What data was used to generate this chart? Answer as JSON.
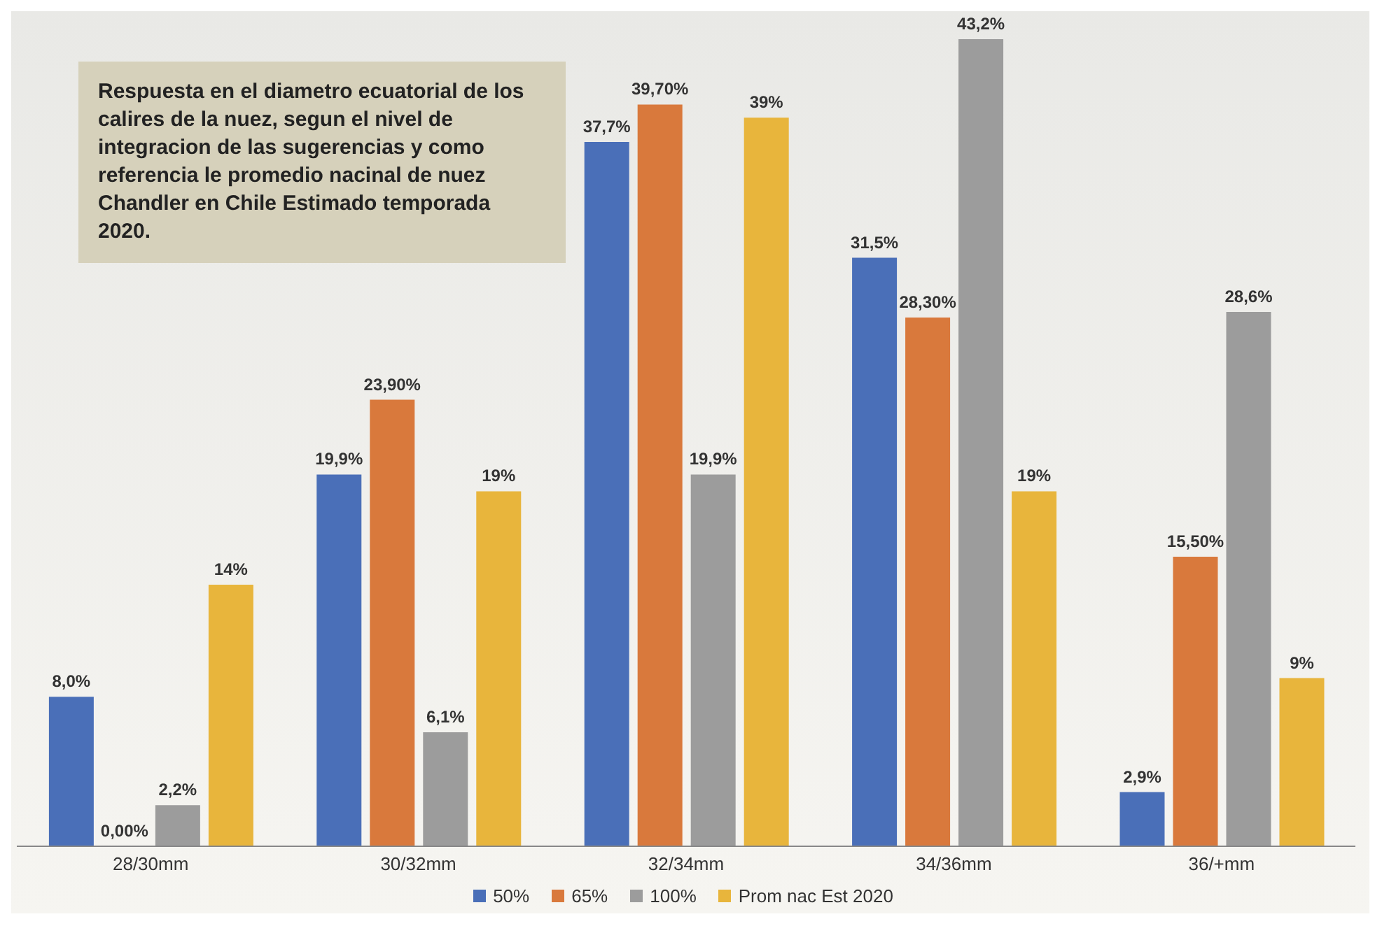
{
  "chart_data": {
    "type": "bar",
    "categories": [
      "28/30mm",
      "30/32mm",
      "32/34mm",
      "34/36mm",
      "36/+mm"
    ],
    "series": [
      {
        "name": "50%",
        "color": "#4a6fb8",
        "values": [
          8.0,
          19.9,
          37.7,
          31.5,
          2.9
        ],
        "value_labels": [
          "8,0%",
          "19,9%",
          "37,7%",
          "31,5%",
          "2,9%"
        ]
      },
      {
        "name": "65%",
        "color": "#d9793c",
        "values": [
          0,
          23.9,
          39.7,
          28.3,
          15.5
        ],
        "value_labels": [
          "0,00%",
          "23,90%",
          "39,70%",
          "28,30%",
          "15,50%"
        ]
      },
      {
        "name": "100%",
        "color": "#9c9c9c",
        "values": [
          2.2,
          6.1,
          19.9,
          43.2,
          28.6
        ],
        "value_labels": [
          "2,2%",
          "6,1%",
          "19,9%",
          "43,2%",
          "28,6%"
        ]
      },
      {
        "name": "Prom nac Est 2020",
        "color": "#e8b53c",
        "values": [
          14,
          19,
          39,
          19,
          9
        ],
        "value_labels": [
          "14%",
          "19%",
          "39%",
          "19%",
          "9%"
        ]
      }
    ],
    "tick_labels": "x",
    "legend": "bottom",
    "annotations": [
      "Respuesta en el diametro ecuatorial de los calires de la nuez, segun el nivel de integracion de las sugerencias y como referencia le promedio nacinal de nuez Chandler en Chile Estimado temporada 2020."
    ]
  }
}
